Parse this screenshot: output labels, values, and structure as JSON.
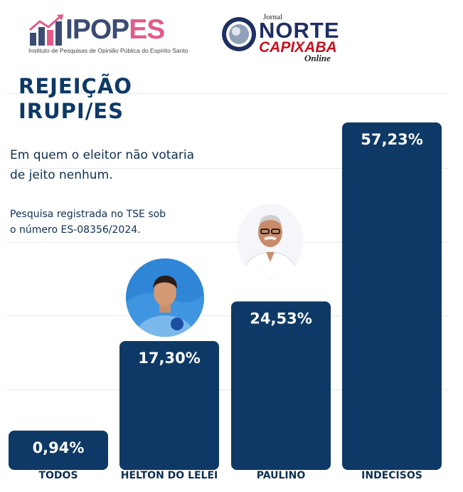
{
  "header": {
    "ipopes_logo": {
      "word_dark": "IPOP",
      "word_accent": "ES",
      "subtitle": "Instituto de Pesquisas de Opinião Pública do Espírito Santo"
    },
    "jornal_logo": {
      "small": "Jornal",
      "word1": "NORTE",
      "word2": "CAPIXABA",
      "word3": "Online"
    }
  },
  "title_line1": "REJEIÇÃO",
  "title_line2": "IRUPI/ES",
  "subtitle_line1": "Em quem o eleitor não votaria",
  "subtitle_line2": "de jeito nenhum.",
  "note_line1": "Pesquisa registrada no TSE sob",
  "note_line2": "o número ES-08356/2024.",
  "colors": {
    "bar": "#0e3966",
    "title": "#0e3966",
    "ipopes_dark": "#3c4b72",
    "ipopes_accent": "#e05b8a",
    "jornal_red": "#c8101f"
  },
  "chart_data": {
    "type": "bar",
    "categories": [
      "TODOS",
      "HELTON DO LELEI",
      "PAULINO",
      "INDECISOS"
    ],
    "values": [
      0.94,
      17.3,
      24.53,
      57.23
    ],
    "value_labels": [
      "0,94%",
      "17,30%",
      "24,53%",
      "57,23%"
    ],
    "unit": "%",
    "ylim": [
      0,
      60
    ],
    "grid": true,
    "legend": "none"
  }
}
